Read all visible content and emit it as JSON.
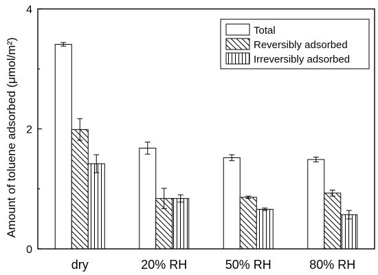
{
  "chart_data": {
    "type": "bar",
    "title": "",
    "xlabel": "",
    "ylabel": "Amount of toluene adsorbed (μmol/m²)",
    "ylim": [
      0,
      4
    ],
    "yticks": [
      0,
      2,
      4
    ],
    "categories": [
      "dry",
      "20% RH",
      "50% RH",
      "80% RH"
    ],
    "series": [
      {
        "name": "Total",
        "pattern": "none",
        "values": [
          3.41,
          1.68,
          1.52,
          1.49
        ],
        "errors": [
          0.03,
          0.1,
          0.05,
          0.04
        ]
      },
      {
        "name": "Reversibly adsorbed",
        "pattern": "diagonal",
        "values": [
          1.99,
          0.84,
          0.86,
          0.93
        ],
        "errors": [
          0.18,
          0.17,
          0.02,
          0.05
        ]
      },
      {
        "name": "Irreversibly adsorbed",
        "pattern": "vertical",
        "values": [
          1.42,
          0.84,
          0.66,
          0.57
        ],
        "errors": [
          0.15,
          0.06,
          0.02,
          0.07
        ]
      }
    ],
    "legend": "top-right",
    "grid": false
  }
}
